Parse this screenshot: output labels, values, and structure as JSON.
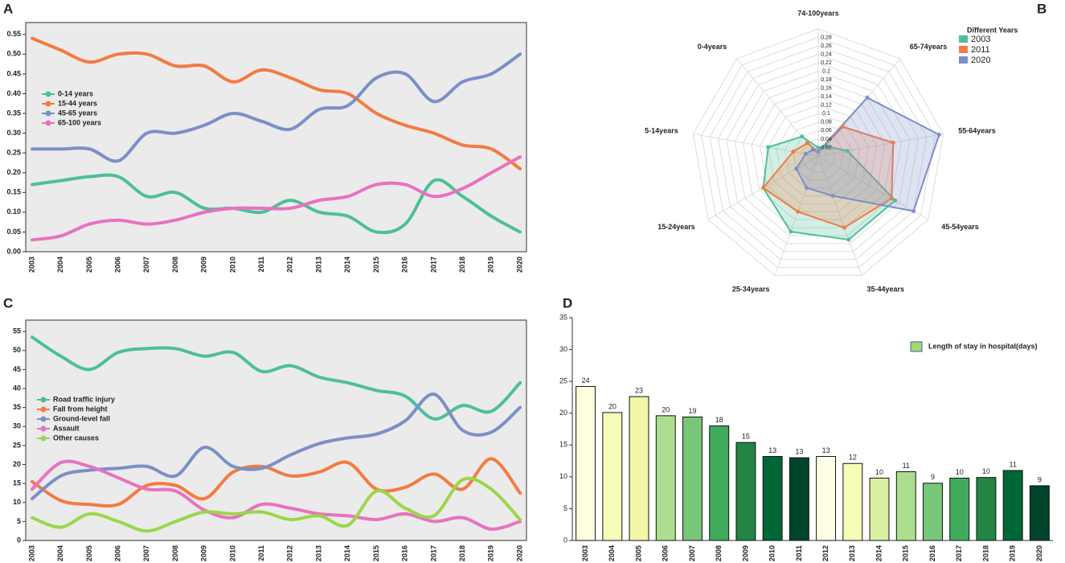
{
  "chart_data": [
    {
      "type": "line",
      "label": "A",
      "categories": [
        "2003",
        "2004",
        "2005",
        "2006",
        "2007",
        "2008",
        "2009",
        "2010",
        "2011",
        "2012",
        "2013",
        "2014",
        "2015",
        "2016",
        "2017",
        "2018",
        "2019",
        "2020"
      ],
      "ylim": [
        0,
        0.58
      ],
      "yticks": [
        {
          "value": 0,
          "label": "0.00"
        },
        {
          "value": 0.05,
          "label": "0.05"
        },
        {
          "value": 0.1,
          "label": "0.10"
        },
        {
          "value": 0.15,
          "label": "0.15"
        },
        {
          "value": 0.2,
          "label": "0.20"
        },
        {
          "value": 0.25,
          "label": "0.25"
        },
        {
          "value": 0.3,
          "label": "0.30"
        },
        {
          "value": 0.35,
          "label": "0.35"
        },
        {
          "value": 0.4,
          "label": "0.40"
        },
        {
          "value": 0.45,
          "label": "0.45"
        },
        {
          "value": 0.5,
          "label": "0.50"
        },
        {
          "value": 0.55,
          "label": "0.55"
        }
      ],
      "series": [
        {
          "name": "0-14 years",
          "color": "#4dbf9a",
          "values": [
            0.17,
            0.18,
            0.19,
            0.19,
            0.14,
            0.15,
            0.11,
            0.11,
            0.1,
            0.13,
            0.1,
            0.09,
            0.05,
            0.07,
            0.18,
            0.14,
            0.09,
            0.05
          ]
        },
        {
          "name": "15-44 years",
          "color": "#f47a42",
          "values": [
            0.54,
            0.51,
            0.48,
            0.5,
            0.5,
            0.47,
            0.47,
            0.43,
            0.46,
            0.44,
            0.41,
            0.4,
            0.35,
            0.32,
            0.3,
            0.27,
            0.26,
            0.21
          ]
        },
        {
          "name": "45-65 years",
          "color": "#7b8fc7",
          "values": [
            0.26,
            0.26,
            0.26,
            0.23,
            0.3,
            0.3,
            0.32,
            0.35,
            0.33,
            0.31,
            0.36,
            0.37,
            0.44,
            0.45,
            0.38,
            0.43,
            0.45,
            0.5
          ]
        },
        {
          "name": "65-100 years",
          "color": "#e872be",
          "values": [
            0.03,
            0.04,
            0.07,
            0.08,
            0.07,
            0.08,
            0.1,
            0.11,
            0.11,
            0.11,
            0.13,
            0.14,
            0.17,
            0.17,
            0.14,
            0.16,
            0.2,
            0.24
          ]
        }
      ]
    },
    {
      "type": "radar",
      "label": "B",
      "legend_title": "Different Years",
      "categories": [
        "74-100years",
        "65-74years",
        "55-64years",
        "45-54years",
        "35-44years",
        "25-34years",
        "15-24years",
        "5-14years",
        "0-4years"
      ],
      "rlim": [
        0,
        0.3
      ],
      "rticks": [
        0.02,
        0.04,
        0.06,
        0.08,
        0.1,
        0.12,
        0.14,
        0.16,
        0.18,
        0.2,
        0.22,
        0.24,
        0.26,
        0.28
      ],
      "series": [
        {
          "name": "2003",
          "color": "#4dbf9a",
          "values": [
            0.02,
            0.03,
            0.07,
            0.21,
            0.21,
            0.19,
            0.15,
            0.12,
            0.06
          ]
        },
        {
          "name": "2011",
          "color": "#f47a42",
          "values": [
            0.01,
            0.09,
            0.18,
            0.2,
            0.18,
            0.14,
            0.15,
            0.06,
            0.04
          ]
        },
        {
          "name": "2020",
          "color": "#7b8fc7",
          "values": [
            0.01,
            0.18,
            0.29,
            0.26,
            0.1,
            0.08,
            0.06,
            0.03,
            0.02
          ]
        }
      ]
    },
    {
      "type": "line",
      "label": "C",
      "categories": [
        "2003",
        "2004",
        "2005",
        "2006",
        "2007",
        "2008",
        "2009",
        "2010",
        "2011",
        "2012",
        "2013",
        "2014",
        "2015",
        "2016",
        "2017",
        "2018",
        "2019",
        "2020"
      ],
      "ylim": [
        0,
        58
      ],
      "yticks": [
        0,
        5,
        10,
        15,
        20,
        25,
        30,
        35,
        40,
        45,
        50,
        55
      ],
      "series": [
        {
          "name": "Road traffic injury",
          "color": "#4dbf9a",
          "values": [
            53.5,
            48.5,
            45,
            49.5,
            50.5,
            50.5,
            48.5,
            49.5,
            44.5,
            46,
            43,
            41.5,
            39.5,
            38,
            32,
            35.5,
            34,
            41.5
          ]
        },
        {
          "name": "Fall from height",
          "color": "#f47a42",
          "values": [
            15.5,
            10.5,
            9.5,
            9.5,
            14.5,
            14.5,
            11,
            18,
            19.5,
            17,
            18,
            20.5,
            13.5,
            14,
            17.5,
            13.5,
            21.5,
            12.5
          ]
        },
        {
          "name": "Ground-level fall",
          "color": "#7b8fc7",
          "values": [
            11,
            17,
            18.5,
            19,
            19.5,
            17,
            24.5,
            19.5,
            19,
            22.5,
            25.5,
            27,
            28,
            31.5,
            38.5,
            29,
            28.5,
            35
          ]
        },
        {
          "name": "Assault",
          "color": "#e872be",
          "values": [
            13.5,
            20.5,
            19.5,
            16.5,
            13.5,
            13,
            8,
            6,
            9.5,
            8.5,
            7,
            6.5,
            5.5,
            7,
            5,
            6,
            3,
            5
          ]
        },
        {
          "name": "Other causes",
          "color": "#9bd64a",
          "values": [
            6,
            3.5,
            7,
            5,
            2.5,
            5,
            7.5,
            7,
            7.5,
            5.5,
            6.5,
            4,
            13,
            8.5,
            6.5,
            16,
            13.5,
            5.5
          ]
        }
      ]
    },
    {
      "type": "bar",
      "label": "D",
      "legend": "Length of stay in hospital(days)",
      "legend_color": "#a6d96a",
      "categories": [
        "2003",
        "2004",
        "2005",
        "2006",
        "2007",
        "2008",
        "2009",
        "2010",
        "2011",
        "2012",
        "2013",
        "2014",
        "2015",
        "2016",
        "2017",
        "2018",
        "2019",
        "2020"
      ],
      "values": [
        24.2,
        20.1,
        22.6,
        19.6,
        19.4,
        18,
        15.4,
        13.2,
        13,
        13.2,
        12.1,
        9.8,
        10.8,
        9,
        9.8,
        9.9,
        11,
        8.6
      ],
      "value_labels": [
        "24",
        "20",
        "23",
        "20",
        "19",
        "18",
        "15",
        "13",
        "13",
        "13",
        "12",
        "10",
        "11",
        "9",
        "10",
        "10",
        "11",
        "9"
      ],
      "colors": [
        "#ffffe0",
        "#f7fcb9",
        "#f2f7a8",
        "#addd8e",
        "#78c679",
        "#41ab5d",
        "#238443",
        "#006837",
        "#004529",
        "#ffffe5",
        "#f7fcb9",
        "#d9f0a3",
        "#addd8e",
        "#78c679",
        "#41ab5d",
        "#238443",
        "#006837",
        "#004529"
      ],
      "ylim": [
        0,
        35
      ],
      "yticks": [
        0,
        5,
        10,
        15,
        20,
        25,
        30,
        35
      ]
    }
  ]
}
